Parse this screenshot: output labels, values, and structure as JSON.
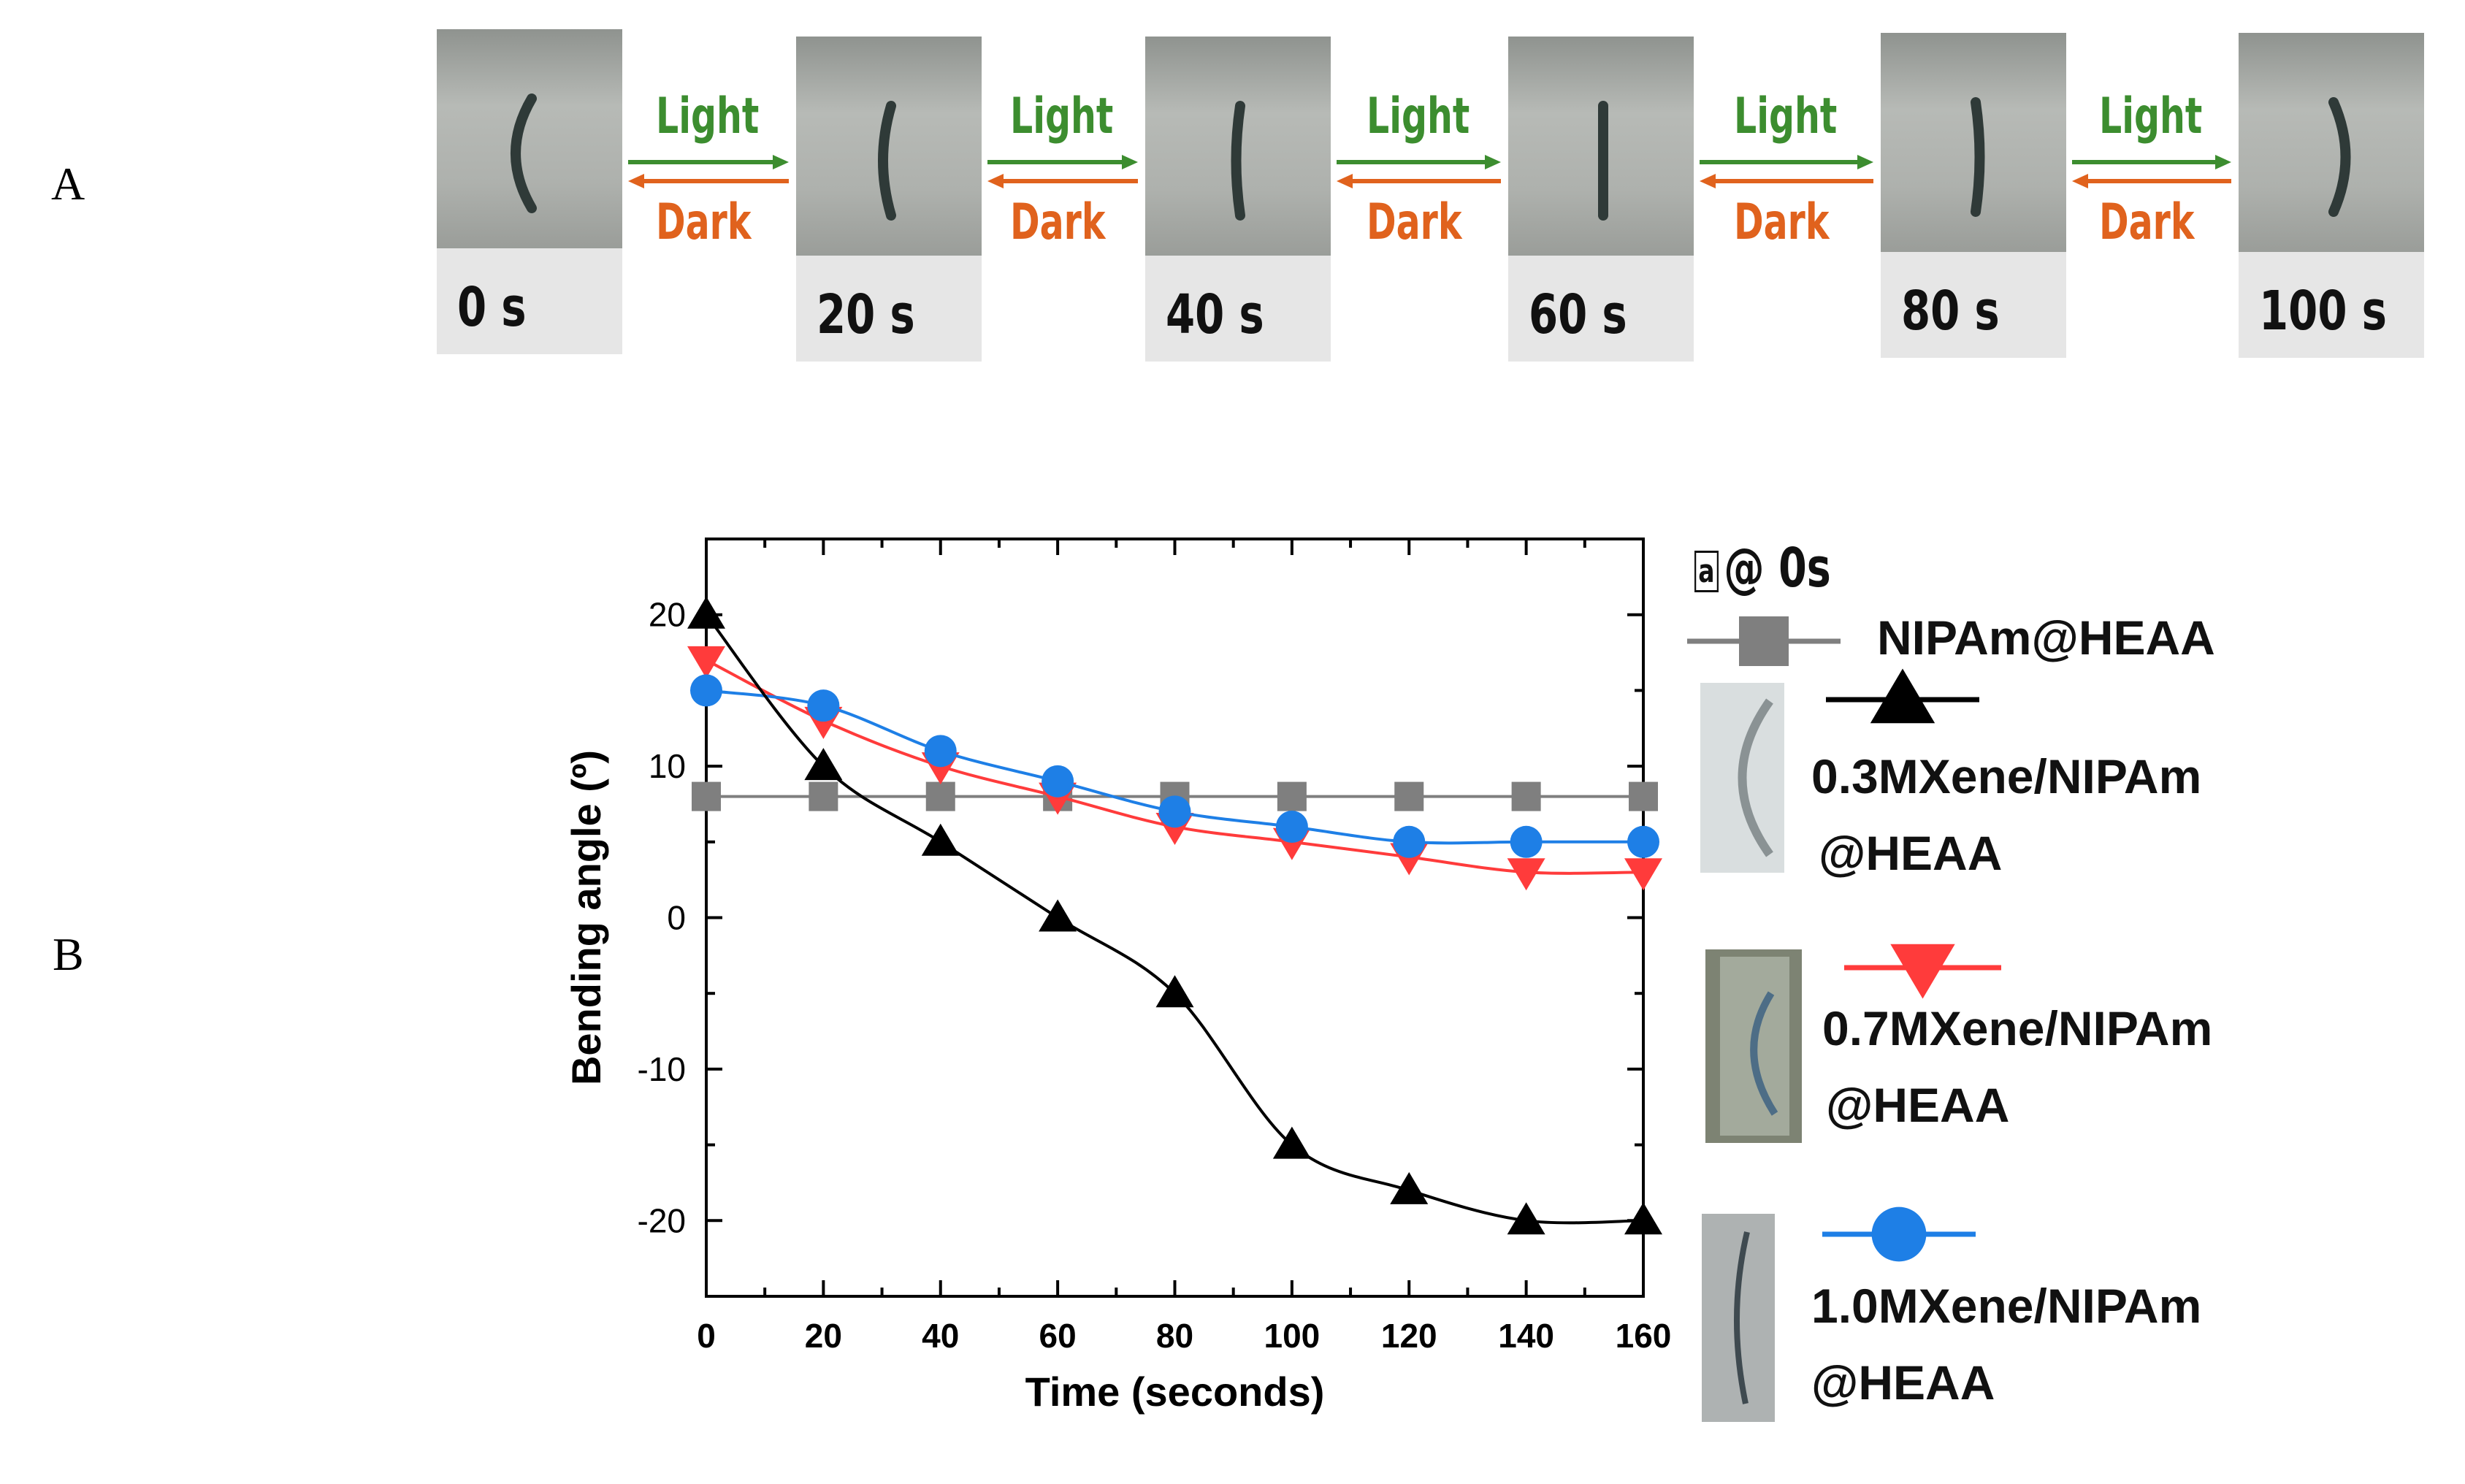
{
  "panels": {
    "a": "A",
    "b": "B"
  },
  "sequence": {
    "frames": [
      {
        "label": "0 s",
        "angle_deg": 20
      },
      {
        "label": "20 s",
        "angle_deg": 10
      },
      {
        "label": "40 s",
        "angle_deg": 5
      },
      {
        "label": "60 s",
        "angle_deg": 0
      },
      {
        "label": "80 s",
        "angle_deg": -5
      },
      {
        "label": "100 s",
        "angle_deg": -15
      }
    ],
    "arrow_top": "Light",
    "arrow_bottom": "Dark"
  },
  "legend": {
    "header": "@ 0s",
    "header_box": "a",
    "entries": [
      {
        "label_line1": "NIPAm@HEAA",
        "label_line2": "",
        "color": "#7f7f7f",
        "marker": "square"
      },
      {
        "label_line1": "0.3MXene/NIPAm",
        "label_line2": "@HEAA",
        "color": "#000000",
        "marker": "triangle-up"
      },
      {
        "label_line1": "0.7MXene/NIPAm",
        "label_line2": "@HEAA",
        "color": "#ff3b3b",
        "marker": "triangle-down"
      },
      {
        "label_line1": "1.0MXene/NIPAm",
        "label_line2": "@HEAA",
        "color": "#1e7fe6",
        "marker": "circle"
      }
    ]
  },
  "chart_data": {
    "type": "line",
    "title": "",
    "xlabel": "Time (seconds)",
    "ylabel": "Bending angle (º)",
    "xlim": [
      0,
      160
    ],
    "ylim": [
      -25,
      25
    ],
    "xticks": [
      0,
      20,
      40,
      60,
      80,
      100,
      120,
      140,
      160
    ],
    "yticks": [
      -20,
      -10,
      0,
      10,
      20
    ],
    "x": [
      0,
      20,
      40,
      60,
      80,
      100,
      120,
      140,
      160
    ],
    "series": [
      {
        "name": "NIPAm@HEAA",
        "color": "#7f7f7f",
        "marker": "square",
        "values": [
          8,
          8,
          8,
          8,
          8,
          8,
          8,
          8,
          8
        ]
      },
      {
        "name": "0.3MXene/NIPAm@HEAA",
        "color": "#000000",
        "marker": "triangle-up",
        "values": [
          20,
          10,
          5,
          0,
          -5,
          -15,
          -18,
          -20,
          -20
        ]
      },
      {
        "name": "0.7MXene/NIPAm@HEAA",
        "color": "#ff3b3b",
        "marker": "triangle-down",
        "values": [
          17,
          13,
          10,
          8,
          6,
          5,
          4,
          3,
          3
        ]
      },
      {
        "name": "1.0MXene/NIPAm@HEAA",
        "color": "#1e7fe6",
        "marker": "circle",
        "values": [
          15,
          14,
          11,
          9,
          7,
          6,
          5,
          5,
          5
        ]
      }
    ]
  }
}
